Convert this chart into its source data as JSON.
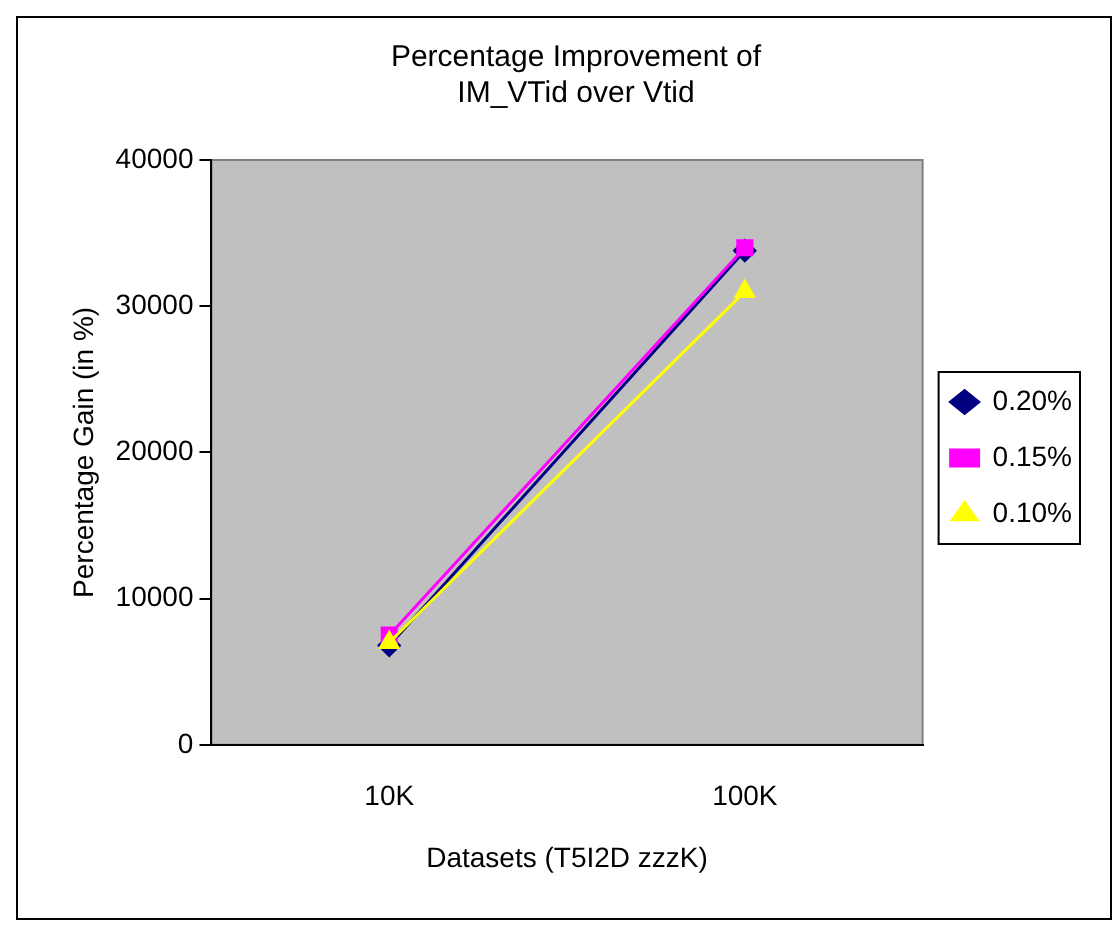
{
  "chart_data": {
    "type": "line",
    "title": "Percentage Improvement of\nIM_VTid over Vtid",
    "xlabel": "Datasets (T5I2D zzzK)",
    "ylabel": "Percentage Gain (in %)",
    "categories": [
      "10K",
      "100K"
    ],
    "series": [
      {
        "name": "0.20%",
        "color": "#000080",
        "marker": "diamond",
        "values": [
          6800,
          33800
        ]
      },
      {
        "name": "0.15%",
        "color": "#ff00ff",
        "marker": "square",
        "values": [
          7500,
          34000
        ]
      },
      {
        "name": "0.10%",
        "color": "#ffff00",
        "marker": "triangle",
        "values": [
          7000,
          31000
        ]
      }
    ],
    "ylim": [
      0,
      40000
    ],
    "yticks": [
      0,
      10000,
      20000,
      30000,
      40000
    ],
    "grid": false,
    "legend": "right"
  }
}
